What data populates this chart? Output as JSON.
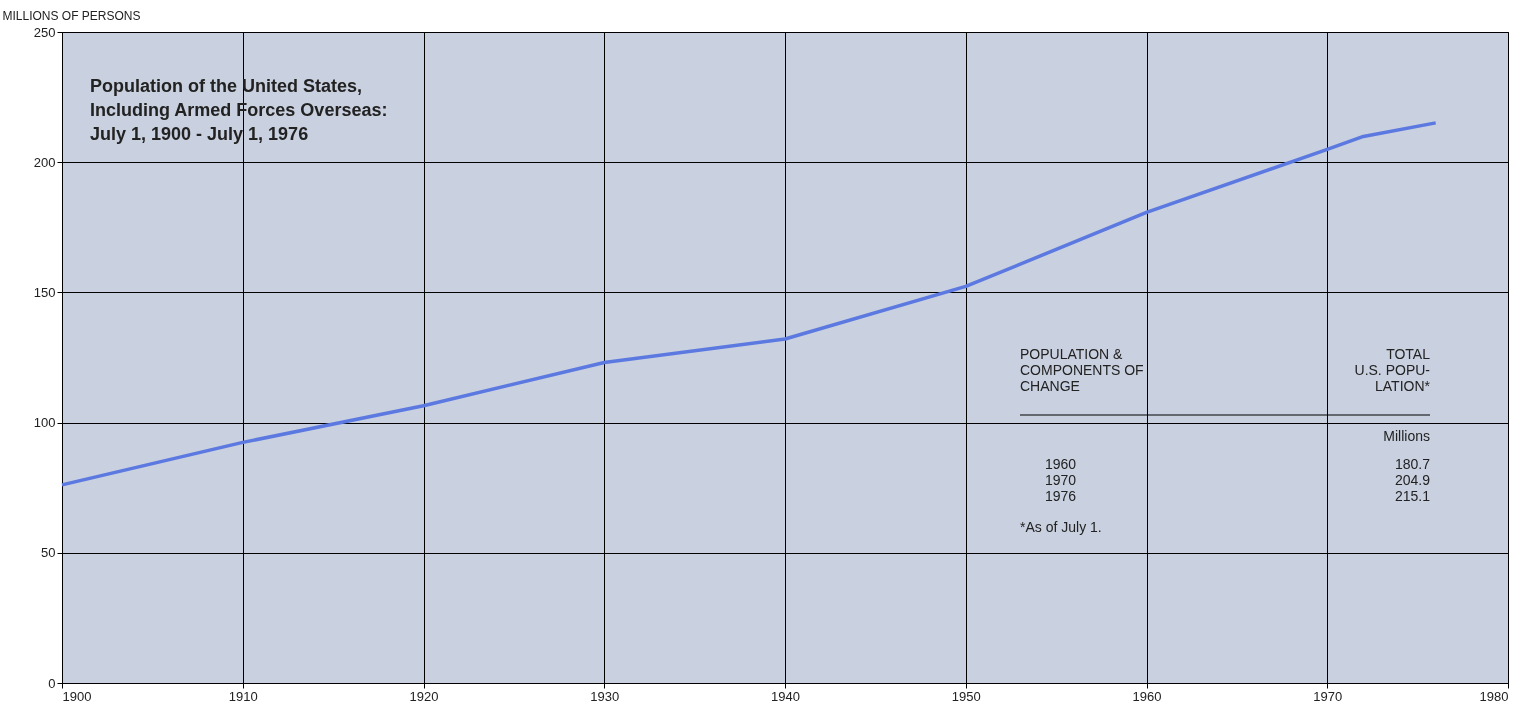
{
  "chart_data": {
    "type": "line",
    "title": "Population of the United States,\nIncluding Armed Forces Overseas:\nJuly 1, 1900 - July 1, 1976",
    "ylabel": "MILLIONS OF PERSONS",
    "x": [
      1900,
      1910,
      1920,
      1930,
      1940,
      1950,
      1960,
      1970,
      1972,
      1976
    ],
    "values": [
      76.1,
      92.4,
      106.5,
      123.1,
      132.1,
      152.3,
      180.7,
      204.9,
      209.9,
      215.1
    ],
    "color": "#5b79e0",
    "xlim": [
      1900,
      1980
    ],
    "xticks": [
      1900,
      1910,
      1920,
      1930,
      1940,
      1950,
      1960,
      1970,
      1980
    ],
    "ylim": [
      0,
      250
    ],
    "yticks": [
      0,
      50,
      100,
      150,
      200,
      250
    ],
    "grid": true,
    "annotations": [
      "POPULATION &\nCOMPONENTS OF\nCHANGE",
      "TOTAL\nU.S. POPU-\nLATION*",
      "Millions",
      "1960",
      "180.7",
      "1970",
      "204.9",
      "1976",
      "215.1",
      "*As of July 1."
    ]
  }
}
